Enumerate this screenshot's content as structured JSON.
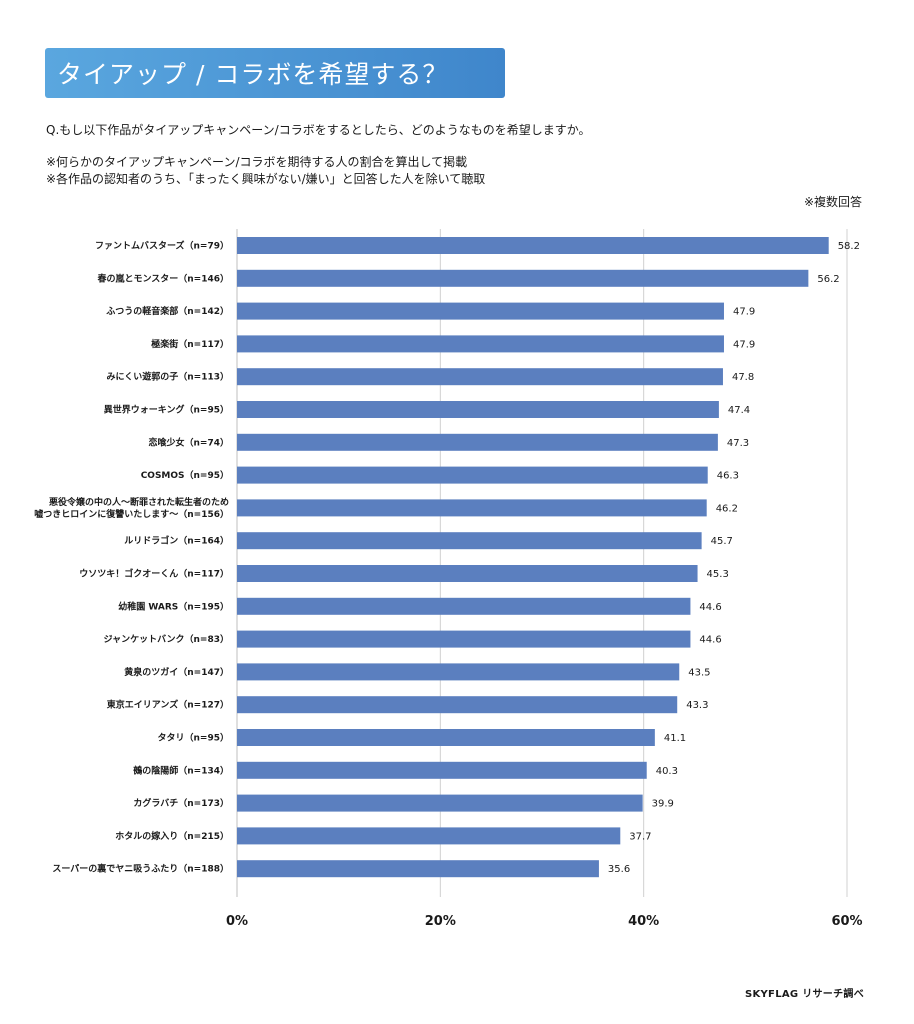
{
  "header": {
    "title": "タイアップ / コラボを希望する？",
    "question": "Q.もし以下作品がタイアップキャンペーン/コラボをするとしたら、どのようなものを希望しますか。",
    "note1": "※何らかのタイアップキャンペーン/コラボを期待する人の割合を算出して掲載",
    "note2": "※各作品の認知者のうち、「まったく興味がない/嫌い」と回答した人を除いて聴取",
    "multiple_answer": "※複数回答"
  },
  "footer": {
    "source": "SKYFLAG リサーチ調べ"
  },
  "colors": {
    "bar": "#5b7fbf",
    "grid": "#d0d0d0",
    "title_bg_left": "#5aa7df",
    "title_bg_right": "#3f86cb"
  },
  "chart_data": {
    "type": "bar",
    "orientation": "horizontal",
    "categories": [
      [
        "ファントムバスターズ（n=79）"
      ],
      [
        "春の嵐とモンスター（n=146）"
      ],
      [
        "ふつうの軽音楽部（n=142）"
      ],
      [
        "極楽街（n=117）"
      ],
      [
        "みにくい遊郭の子（n=113）"
      ],
      [
        "異世界ウォーキング（n=95）"
      ],
      [
        "恋喰少女（n=74）"
      ],
      [
        "COSMOS（n=95）"
      ],
      [
        "悪役令嬢の中の人～断罪された転生者のため",
        "嘘つきヒロインに復讐いたします～（n=156）"
      ],
      [
        "ルリドラゴン（n=164）"
      ],
      [
        "ウソツキ！ゴクオーくん（n=117）"
      ],
      [
        "幼稚園 WARS（n=195）"
      ],
      [
        "ジャンケットバンク（n=83）"
      ],
      [
        "黄泉のツガイ（n=147）"
      ],
      [
        "東京エイリアンズ（n=127）"
      ],
      [
        "タタリ（n=95）"
      ],
      [
        "鵺の陰陽師（n=134）"
      ],
      [
        "カグラバチ（n=173）"
      ],
      [
        "ホタルの嫁入り（n=215）"
      ],
      [
        "スーパーの裏でヤニ吸うふたり（n=188）"
      ]
    ],
    "values": [
      58.2,
      56.2,
      47.9,
      47.9,
      47.8,
      47.4,
      47.3,
      46.3,
      46.2,
      45.7,
      45.3,
      44.6,
      44.6,
      43.5,
      43.3,
      41.1,
      40.3,
      39.9,
      37.7,
      35.6
    ],
    "value_labels": [
      "58.2",
      "56.2",
      "47.9",
      "47.9",
      "47.8",
      "47.4",
      "47.3",
      "46.3",
      "46.2",
      "45.7",
      "45.3",
      "44.6",
      "44.6",
      "43.5",
      "43.3",
      "41.1",
      "40.3",
      "39.9",
      "37.7",
      "35.6"
    ],
    "x_ticks": [
      "0%",
      "20%",
      "40%",
      "60%"
    ],
    "x_tick_values": [
      0,
      20,
      40,
      60
    ],
    "xlim": [
      0,
      60
    ],
    "grid": true,
    "legend": "none"
  }
}
